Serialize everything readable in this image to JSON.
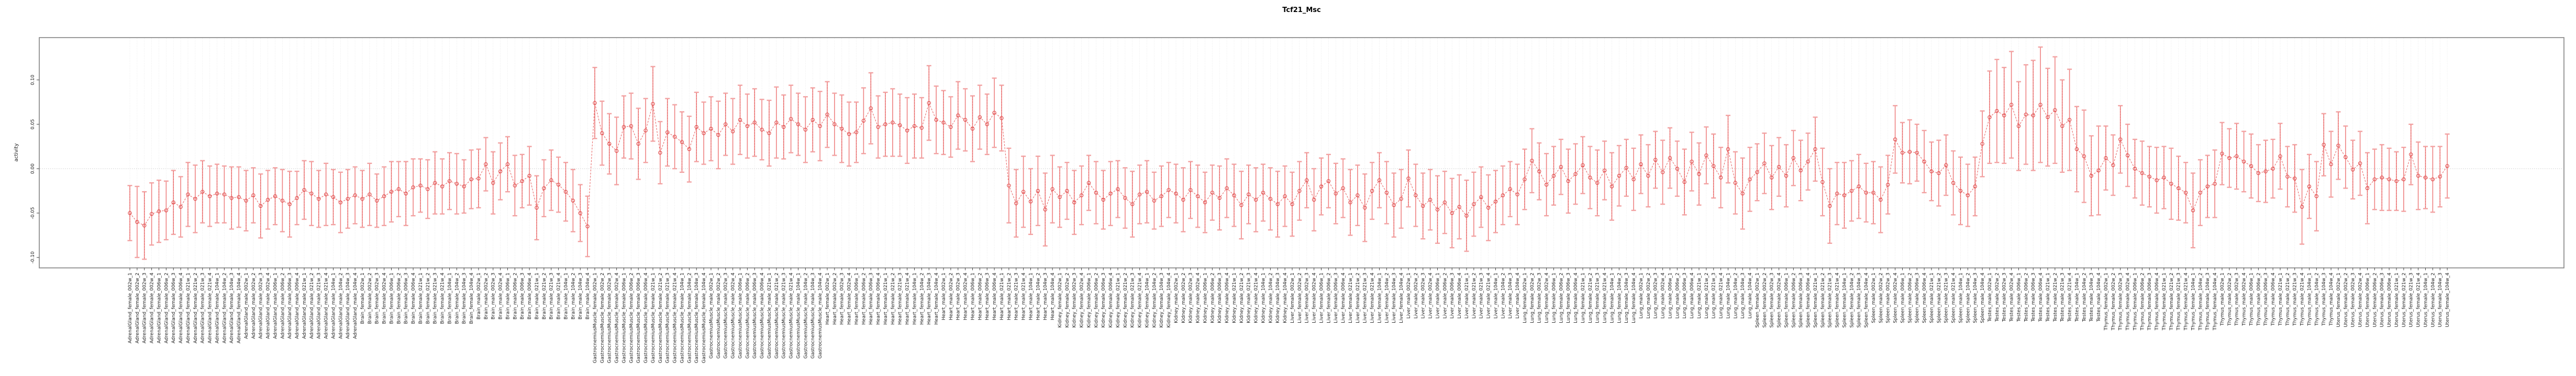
{
  "title": "Tcf21_Msc",
  "y_axis": {
    "label": "activity",
    "tick_labels": [
      "0.10",
      "0.05",
      "0.00",
      "-0.05",
      "-0.10"
    ],
    "tick_values": [
      0.1,
      0.05,
      0.0,
      -0.05,
      -0.1
    ]
  },
  "colors": {
    "point": "#e14f4f",
    "errorbar": "#ee8282",
    "errorbar_dash": "#e25555",
    "cap": "#f2a2a2",
    "line": "#e96a6a",
    "grid": "#dedede",
    "zero_line": "#c8c8c8",
    "border": "#8f8f8f",
    "tick": "#404040",
    "label": "#1a1a1a"
  },
  "chart_data": {
    "type": "line",
    "subtype": "points-with-errorbars",
    "title": "Tcf21_Msc",
    "xlabel": "",
    "ylabel": "activity",
    "ylim": [
      -0.112,
      0.148
    ],
    "y_ticks": [
      0.1,
      0.05,
      0.0,
      -0.05,
      -0.1
    ],
    "grid": "vertical-dotted-per-category, horizontal-dotted-at-zero",
    "legend": "none",
    "ages": [
      "002w",
      "006w",
      "021w",
      "104w"
    ],
    "replicates": 4,
    "label_pattern": "{tissue}_{sex}_{age}_{replicate}",
    "groups": [
      {
        "tissue": "AdrenalGland",
        "sex": "female",
        "values": [
          -0.05,
          -0.06,
          -0.064,
          -0.051,
          -0.048,
          -0.047,
          -0.038,
          -0.043,
          -0.029,
          -0.034,
          -0.026,
          -0.031,
          -0.028,
          -0.029,
          -0.033,
          -0.032
        ],
        "errors": [
          0.031,
          0.04,
          0.038,
          0.035,
          0.035,
          0.033,
          0.036,
          0.034,
          0.036,
          0.038,
          0.035,
          0.034,
          0.033,
          0.032,
          0.035,
          0.034
        ]
      },
      {
        "tissue": "AdrenalGland",
        "sex": "male",
        "values": [
          -0.036,
          -0.03,
          -0.042,
          -0.035,
          -0.031,
          -0.036,
          -0.04,
          -0.033,
          -0.024,
          -0.028,
          -0.034,
          -0.029,
          -0.032,
          -0.038,
          -0.034,
          -0.03
        ],
        "errors": [
          0.034,
          0.031,
          0.036,
          0.033,
          0.032,
          0.035,
          0.037,
          0.03,
          0.033,
          0.036,
          0.032,
          0.035,
          0.031,
          0.034,
          0.033,
          0.032
        ]
      },
      {
        "tissue": "Brain",
        "sex": "female",
        "values": [
          -0.034,
          -0.029,
          -0.036,
          -0.031,
          -0.026,
          -0.023,
          -0.028,
          -0.021,
          -0.019,
          -0.023,
          -0.016,
          -0.02,
          -0.014,
          -0.017,
          -0.02,
          -0.012
        ],
        "errors": [
          0.032,
          0.035,
          0.03,
          0.033,
          0.034,
          0.031,
          0.036,
          0.032,
          0.03,
          0.033,
          0.035,
          0.031,
          0.032,
          0.034,
          0.03,
          0.033
        ]
      },
      {
        "tissue": "Brain",
        "sex": "male",
        "values": [
          -0.011,
          0.005,
          -0.016,
          -0.003,
          0.005,
          -0.019,
          -0.014,
          -0.008,
          -0.044,
          -0.022,
          -0.013,
          -0.018,
          -0.026,
          -0.036,
          -0.05,
          -0.065
        ],
        "errors": [
          0.033,
          0.03,
          0.035,
          0.032,
          0.031,
          0.034,
          0.03,
          0.033,
          0.036,
          0.032,
          0.034,
          0.031,
          0.033,
          0.035,
          0.032,
          0.034
        ]
      },
      {
        "tissue": "GastrocnemiusMuscle",
        "sex": "female",
        "values": [
          0.074,
          0.04,
          0.028,
          0.02,
          0.047,
          0.048,
          0.028,
          0.043,
          0.073,
          0.018,
          0.041,
          0.036,
          0.03,
          0.022,
          0.047,
          0.04
        ],
        "errors": [
          0.04,
          0.036,
          0.034,
          0.038,
          0.035,
          0.037,
          0.04,
          0.036,
          0.042,
          0.035,
          0.038,
          0.036,
          0.034,
          0.037,
          0.039,
          0.035
        ]
      },
      {
        "tissue": "GastrocnemiusMuscle",
        "sex": "male",
        "values": [
          0.045,
          0.038,
          0.05,
          0.042,
          0.055,
          0.048,
          0.052,
          0.044,
          0.04,
          0.052,
          0.047,
          0.056,
          0.05,
          0.044,
          0.055,
          0.048
        ],
        "errors": [
          0.036,
          0.038,
          0.035,
          0.037,
          0.039,
          0.036,
          0.038,
          0.034,
          0.037,
          0.04,
          0.036,
          0.038,
          0.035,
          0.037,
          0.036,
          0.039
        ]
      },
      {
        "tissue": "Heart",
        "sex": "female",
        "values": [
          0.061,
          0.05,
          0.045,
          0.039,
          0.041,
          0.054,
          0.068,
          0.047,
          0.05,
          0.052,
          0.049,
          0.043,
          0.048,
          0.046,
          0.074,
          0.055
        ],
        "errors": [
          0.037,
          0.035,
          0.038,
          0.036,
          0.034,
          0.037,
          0.04,
          0.035,
          0.036,
          0.038,
          0.035,
          0.037,
          0.036,
          0.034,
          0.042,
          0.038
        ]
      },
      {
        "tissue": "Heart",
        "sex": "male",
        "values": [
          0.052,
          0.047,
          0.06,
          0.055,
          0.045,
          0.058,
          0.05,
          0.063,
          0.057,
          -0.019,
          -0.039,
          -0.026,
          -0.037,
          -0.025,
          -0.046,
          -0.023
        ],
        "errors": [
          0.036,
          0.034,
          0.038,
          0.035,
          0.037,
          0.036,
          0.034,
          0.039,
          0.037,
          0.042,
          0.038,
          0.04,
          0.037,
          0.039,
          0.041,
          0.038
        ]
      },
      {
        "tissue": "Kidney",
        "sex": "female",
        "values": [
          -0.032,
          -0.025,
          -0.038,
          -0.03,
          -0.016,
          -0.027,
          -0.035,
          -0.028,
          -0.023,
          -0.033,
          -0.04,
          -0.029,
          -0.026,
          -0.036,
          -0.031,
          -0.024
        ],
        "errors": [
          0.034,
          0.032,
          0.036,
          0.033,
          0.031,
          0.035,
          0.033,
          0.036,
          0.032,
          0.034,
          0.037,
          0.033,
          0.035,
          0.032,
          0.034,
          0.031
        ]
      },
      {
        "tissue": "Kidney",
        "sex": "male",
        "values": [
          -0.028,
          -0.035,
          -0.024,
          -0.031,
          -0.038,
          -0.027,
          -0.033,
          -0.022,
          -0.03,
          -0.041,
          -0.029,
          -0.035,
          -0.027,
          -0.034,
          -0.04,
          -0.031
        ],
        "errors": [
          0.033,
          0.036,
          0.032,
          0.035,
          0.034,
          0.031,
          0.036,
          0.033,
          0.035,
          0.038,
          0.033,
          0.036,
          0.032,
          0.035,
          0.037,
          0.034
        ]
      },
      {
        "tissue": "Liver",
        "sex": "female",
        "values": [
          -0.04,
          -0.025,
          -0.013,
          -0.035,
          -0.02,
          -0.014,
          -0.028,
          -0.022,
          -0.038,
          -0.03,
          -0.044,
          -0.025,
          -0.013,
          -0.027,
          -0.041,
          -0.034
        ],
        "errors": [
          0.036,
          0.033,
          0.031,
          0.035,
          0.032,
          0.03,
          0.034,
          0.033,
          0.037,
          0.034,
          0.038,
          0.032,
          0.031,
          0.035,
          0.036,
          0.033
        ]
      },
      {
        "tissue": "Liver",
        "sex": "male",
        "values": [
          -0.011,
          -0.03,
          -0.042,
          -0.035,
          -0.046,
          -0.038,
          -0.05,
          -0.043,
          -0.053,
          -0.04,
          -0.032,
          -0.044,
          -0.037,
          -0.03,
          -0.023,
          -0.029
        ],
        "errors": [
          0.032,
          0.035,
          0.037,
          0.034,
          0.038,
          0.035,
          0.039,
          0.036,
          0.04,
          0.036,
          0.034,
          0.037,
          0.035,
          0.033,
          0.031,
          0.034
        ]
      },
      {
        "tissue": "Lung",
        "sex": "female",
        "values": [
          -0.012,
          0.009,
          -0.003,
          -0.018,
          -0.008,
          0.002,
          -0.014,
          -0.006,
          0.004,
          -0.01,
          -0.016,
          -0.002,
          -0.02,
          -0.008,
          0.001,
          -0.012
        ],
        "errors": [
          0.034,
          0.036,
          0.032,
          0.035,
          0.033,
          0.031,
          0.036,
          0.034,
          0.032,
          0.035,
          0.037,
          0.033,
          0.038,
          0.034,
          0.032,
          0.035
        ]
      },
      {
        "tissue": "Lung",
        "sex": "male",
        "values": [
          0.005,
          -0.008,
          0.01,
          -0.004,
          0.012,
          0.0,
          -0.015,
          0.008,
          -0.006,
          0.015,
          0.003,
          -0.01,
          0.022,
          -0.016,
          -0.028,
          -0.012
        ],
        "errors": [
          0.033,
          0.035,
          0.032,
          0.036,
          0.034,
          0.031,
          0.037,
          0.033,
          0.035,
          0.032,
          0.036,
          0.034,
          0.038,
          0.035,
          0.04,
          0.036
        ]
      },
      {
        "tissue": "Spleen",
        "sex": "female",
        "values": [
          -0.004,
          0.006,
          -0.01,
          0.002,
          -0.008,
          0.012,
          -0.002,
          0.008,
          0.022,
          -0.015,
          -0.042,
          -0.028,
          -0.03,
          -0.025,
          -0.02,
          -0.027
        ],
        "errors": [
          0.032,
          0.034,
          0.036,
          0.033,
          0.035,
          0.031,
          0.034,
          0.032,
          0.036,
          0.038,
          0.042,
          0.035,
          0.037,
          0.034,
          0.036,
          0.033
        ]
      },
      {
        "tissue": "Spleen",
        "sex": "male",
        "values": [
          -0.027,
          -0.035,
          -0.018,
          0.033,
          0.018,
          0.019,
          0.018,
          0.008,
          -0.003,
          -0.005,
          0.004,
          -0.016,
          -0.025,
          -0.03,
          -0.02,
          0.028
        ],
        "errors": [
          0.035,
          0.037,
          0.033,
          0.038,
          0.034,
          0.036,
          0.032,
          0.035,
          0.033,
          0.037,
          0.034,
          0.036,
          0.038,
          0.035,
          0.033,
          0.037
        ]
      },
      {
        "tissue": "Testes",
        "sex": "male",
        "values": [
          0.058,
          0.065,
          0.06,
          0.072,
          0.048,
          0.061,
          0.06,
          0.072,
          0.058,
          0.066,
          0.048,
          0.055,
          0.022,
          0.014,
          -0.008,
          -0.002
        ],
        "errors": [
          0.052,
          0.058,
          0.054,
          0.06,
          0.05,
          0.056,
          0.062,
          0.065,
          0.055,
          0.06,
          0.052,
          0.057,
          0.048,
          0.052,
          0.045,
          0.05
        ]
      },
      {
        "tissue": "Thymus",
        "sex": "female",
        "values": [
          0.012,
          0.004,
          0.033,
          0.015,
          0.0,
          -0.005,
          -0.009,
          -0.013,
          -0.01,
          -0.017,
          -0.022,
          -0.027,
          -0.047,
          -0.027,
          -0.02,
          -0.017
        ],
        "errors": [
          0.036,
          0.034,
          0.038,
          0.035,
          0.033,
          0.036,
          0.034,
          0.037,
          0.035,
          0.04,
          0.036,
          0.034,
          0.042,
          0.037,
          0.035,
          0.038
        ]
      },
      {
        "tissue": "Thymus",
        "sex": "male",
        "values": [
          0.017,
          0.012,
          0.014,
          0.008,
          0.003,
          -0.005,
          -0.003,
          0.0,
          0.014,
          -0.009,
          -0.011,
          -0.043,
          -0.02,
          -0.031,
          0.027,
          0.005
        ],
        "errors": [
          0.035,
          0.033,
          0.037,
          0.034,
          0.036,
          0.032,
          0.035,
          0.033,
          0.037,
          0.034,
          0.038,
          0.042,
          0.036,
          0.039,
          0.035,
          0.037
        ]
      },
      {
        "tissue": "Uterus",
        "sex": "female",
        "values": [
          0.026,
          0.013,
          -0.001,
          0.006,
          -0.022,
          -0.012,
          -0.01,
          -0.012,
          -0.014,
          -0.012,
          0.016,
          -0.008,
          -0.01,
          -0.012,
          -0.009,
          0.003
        ],
        "errors": [
          0.038,
          0.035,
          0.033,
          0.036,
          0.04,
          0.034,
          0.037,
          0.035,
          0.033,
          0.036,
          0.034,
          0.038,
          0.035,
          0.037,
          0.034,
          0.036
        ]
      }
    ]
  }
}
